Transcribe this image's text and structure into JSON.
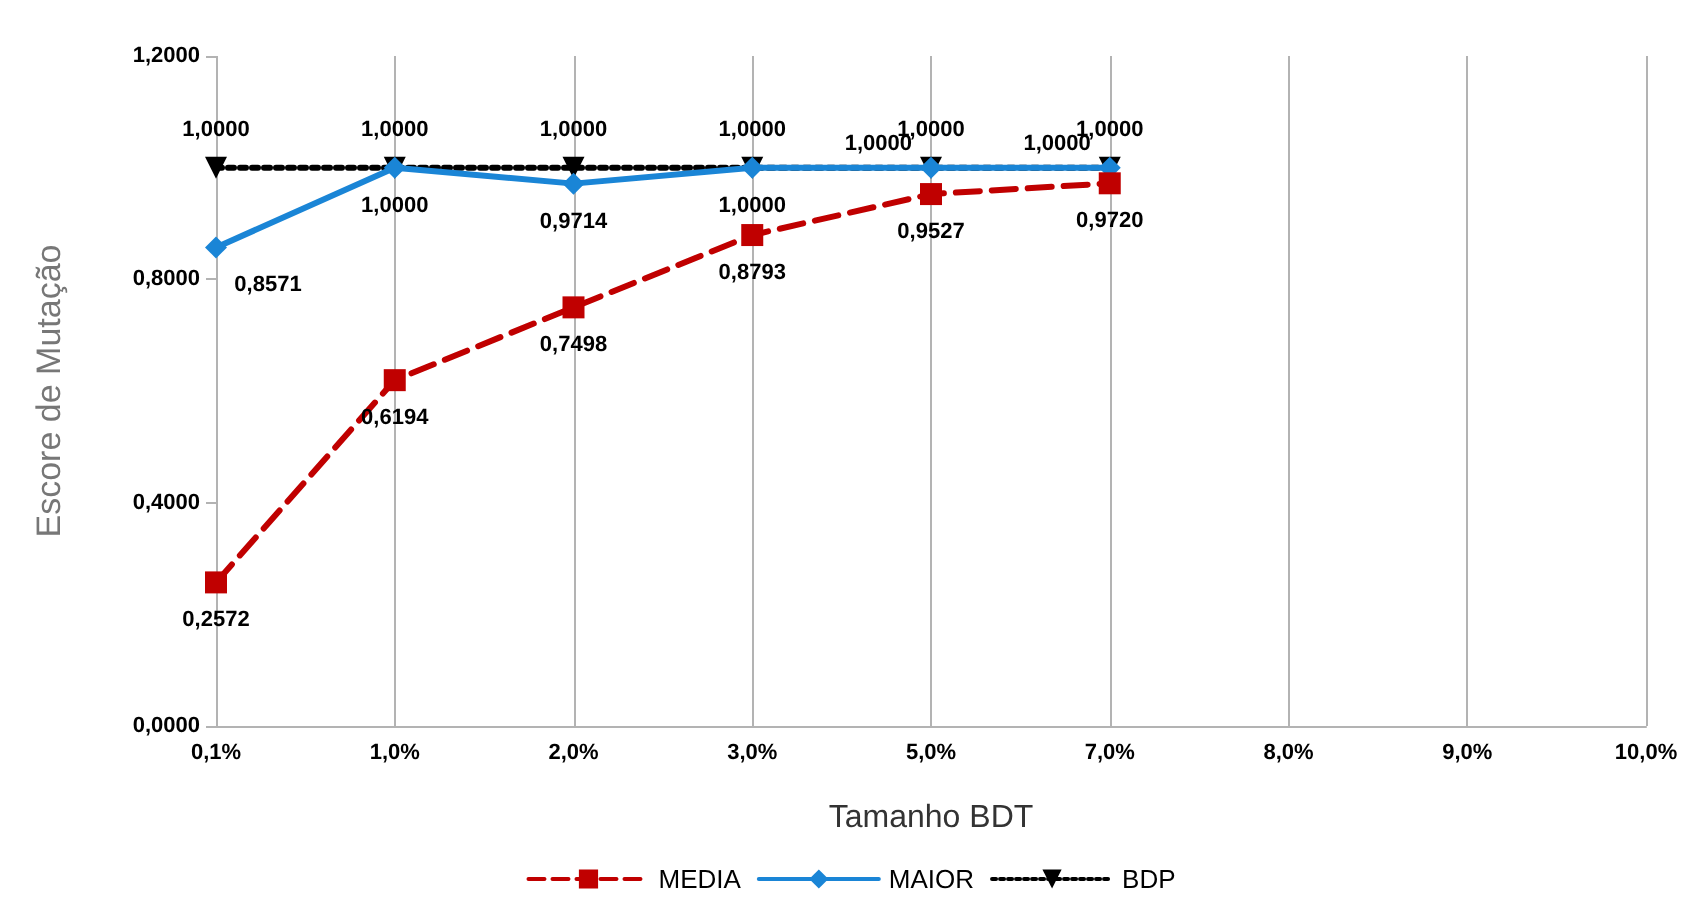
{
  "chart_data": {
    "type": "line",
    "xlabel": "Tamanho BDT",
    "ylabel": "Escore de Mutação",
    "categories": [
      "0,1%",
      "1,0%",
      "2,0%",
      "3,0%",
      "5,0%",
      "7,0%",
      "8,0%",
      "9,0%",
      "10,0%"
    ],
    "ylim": [
      0,
      1.2
    ],
    "yticks": [
      {
        "value": 0,
        "label": "0,0000"
      },
      {
        "value": 0.4,
        "label": "0,4000"
      },
      {
        "value": 0.8,
        "label": "0,8000"
      },
      {
        "value": 1.2,
        "label": "1,2000"
      }
    ],
    "grid": "x",
    "legend": "bottom",
    "series": [
      {
        "name": "MEDIA",
        "color": "#c00000",
        "marker": "square",
        "line_style": "dashed",
        "values": [
          0.2572,
          0.6194,
          0.7498,
          0.8793,
          0.9527,
          0.972,
          null,
          null,
          null
        ],
        "value_labels": [
          "0,2572",
          "0,6194",
          "0,7498",
          "0,8793",
          "0,9527",
          "0,9720",
          null,
          null,
          null
        ]
      },
      {
        "name": "MAIOR",
        "color": "#1a85d6",
        "marker": "diamond",
        "line_style": "solid",
        "values": [
          0.8571,
          1,
          0.9714,
          1,
          1,
          1,
          null,
          null,
          null
        ],
        "value_labels": [
          "0,8571",
          "1,0000",
          "0,9714",
          "1,0000",
          "1,0000",
          "1,0000",
          null,
          null,
          null
        ]
      },
      {
        "name": "BDP",
        "color": "#000000",
        "marker": "triangle-down",
        "line_style": "dotted",
        "values": [
          1,
          1,
          1,
          1,
          1,
          1,
          null,
          null,
          null
        ],
        "value_labels": [
          "1,0000",
          "1,0000",
          "1,0000",
          "1,0000",
          "1,0000",
          "1,0000",
          null,
          null,
          null
        ]
      }
    ]
  }
}
